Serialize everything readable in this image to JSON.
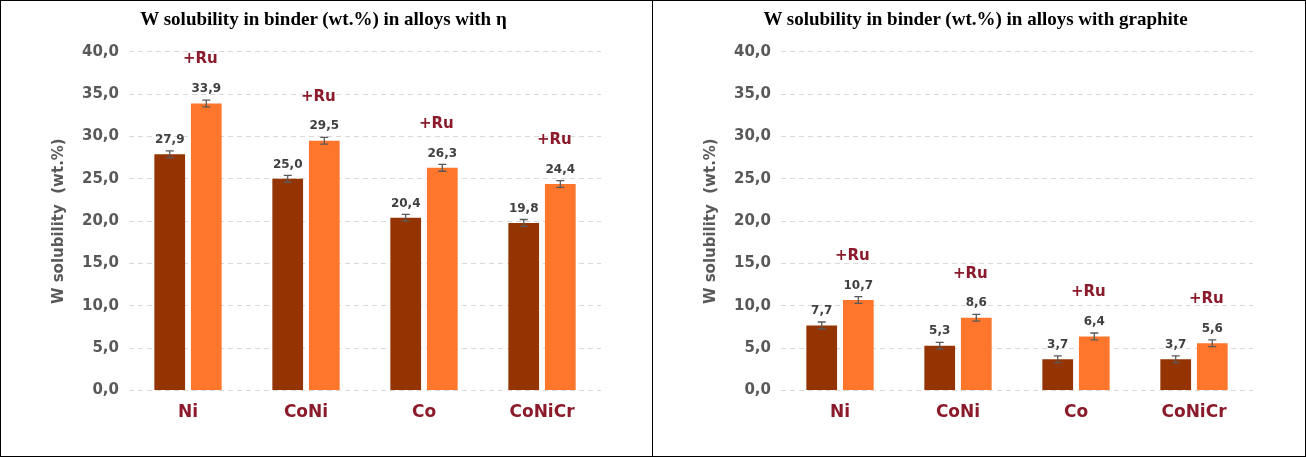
{
  "chart_data": [
    {
      "type": "bar",
      "title": "W solubility in binder (wt.%) in alloys with η",
      "ylabel": "W solubility  (wt.%)",
      "categories": [
        "Ni",
        "CoNi",
        "Co",
        "CoNiCr"
      ],
      "series": [
        {
          "color": "#943403",
          "values": [
            27.9,
            25.0,
            20.4,
            19.8
          ],
          "value_labels": [
            "27,9",
            "25,0",
            "20,4",
            "19,8"
          ],
          "errors": [
            0.4,
            0.4,
            0.4,
            0.4
          ]
        },
        {
          "color": "#fd762b",
          "values": [
            33.9,
            29.5,
            26.3,
            24.4
          ],
          "value_labels": [
            "33,9",
            "29,5",
            "26,3",
            "24,4"
          ],
          "errors": [
            0.4,
            0.4,
            0.4,
            0.4
          ]
        }
      ],
      "ylim": [
        0,
        40
      ],
      "yticks": [
        {
          "value": 0,
          "label": "0,0"
        },
        {
          "value": 5,
          "label": "5,0"
        },
        {
          "value": 10,
          "label": "10,0"
        },
        {
          "value": 15,
          "label": "15,0"
        },
        {
          "value": 20,
          "label": "20,0"
        },
        {
          "value": 25,
          "label": "25,0"
        },
        {
          "value": 30,
          "label": "30,0"
        },
        {
          "value": 35,
          "label": "35,0"
        },
        {
          "value": 40,
          "label": "40,0"
        }
      ],
      "grid": "y",
      "legend": false,
      "annotations": [
        "+Ru",
        "+Ru",
        "+Ru",
        "+Ru"
      ]
    },
    {
      "type": "bar",
      "title": "W solubility in binder (wt.%) in alloys with graphite",
      "ylabel": "W solubility  (wt.%)",
      "categories": [
        "Ni",
        "CoNi",
        "Co",
        "CoNiCr"
      ],
      "series": [
        {
          "color": "#943403",
          "values": [
            7.7,
            5.3,
            3.7,
            3.7
          ],
          "value_labels": [
            "7,7",
            "5,3",
            "3,7",
            "3,7"
          ],
          "errors": [
            0.4,
            0.4,
            0.4,
            0.4
          ]
        },
        {
          "color": "#fd762b",
          "values": [
            10.7,
            8.6,
            6.4,
            5.6
          ],
          "value_labels": [
            "10,7",
            "8,6",
            "6,4",
            "5,6"
          ],
          "errors": [
            0.4,
            0.4,
            0.4,
            0.4
          ]
        }
      ],
      "ylim": [
        0,
        40
      ],
      "yticks": [
        {
          "value": 0,
          "label": "0,0"
        },
        {
          "value": 5,
          "label": "5,0"
        },
        {
          "value": 10,
          "label": "10,0"
        },
        {
          "value": 15,
          "label": "15,0"
        },
        {
          "value": 20,
          "label": "20,0"
        },
        {
          "value": 25,
          "label": "25,0"
        },
        {
          "value": 30,
          "label": "30,0"
        },
        {
          "value": 35,
          "label": "35,0"
        },
        {
          "value": 40,
          "label": "40,0"
        }
      ],
      "grid": "y",
      "legend": false,
      "annotations": [
        "+Ru",
        "+Ru",
        "+Ru",
        "+Ru"
      ]
    }
  ]
}
